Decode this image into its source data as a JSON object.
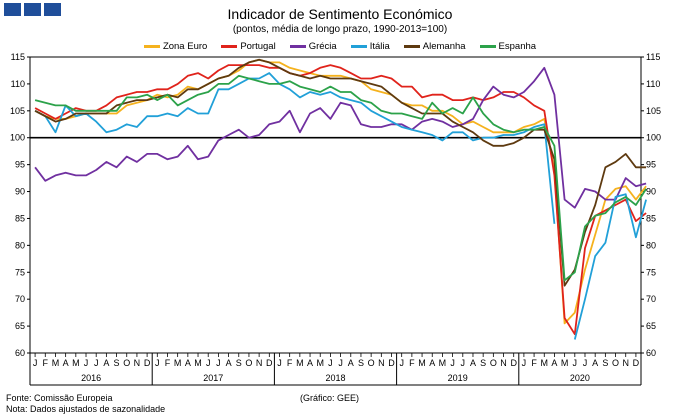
{
  "header": {
    "title": "Indicador de Sentimento Económico",
    "subtitle": "(pontos, média de longo prazo, 1990-2013=100)"
  },
  "footer": {
    "source": "Fonte: Comissão Europeia",
    "note": "Nota: Dados ajustados de sazonalidade",
    "credit": "(Gráfico: GEE)"
  },
  "chart_data": {
    "type": "line",
    "months": [
      "J",
      "F",
      "M",
      "A",
      "M",
      "J",
      "J",
      "A",
      "S",
      "O",
      "N",
      "D"
    ],
    "years": [
      "2016",
      "2017",
      "2018",
      "2019",
      "2020"
    ],
    "ylim": [
      60,
      115
    ],
    "yticks": [
      "60",
      "65",
      "70",
      "75",
      "80",
      "85",
      "90",
      "95",
      "100",
      "105",
      "110",
      "115"
    ],
    "reference_line": 100,
    "legend_position": "top",
    "series": [
      {
        "name": "Zona Euro",
        "color": "#f5b21e",
        "values": [
          105.0,
          104.0,
          103.5,
          103.5,
          104.0,
          104.5,
          104.5,
          104.5,
          104.5,
          106.0,
          106.5,
          107.0,
          108.0,
          107.5,
          108.0,
          109.5,
          109.0,
          110.0,
          111.0,
          111.5,
          112.5,
          114.0,
          114.5,
          114.0,
          114.0,
          113.0,
          112.5,
          112.0,
          111.5,
          111.5,
          111.5,
          111.0,
          110.5,
          109.0,
          108.5,
          108.0,
          106.5,
          106.0,
          106.0,
          105.0,
          105.0,
          104.0,
          102.5,
          103.0,
          102.0,
          101.0,
          101.0,
          101.0,
          102.0,
          102.5,
          103.5,
          94.0,
          65.5,
          67.5,
          75.5,
          82.0,
          88.5,
          90.5,
          91.0,
          88.5,
          91.0
        ]
      },
      {
        "name": "Portugal",
        "color": "#e0231b",
        "values": [
          105.5,
          104.5,
          103.5,
          104.5,
          105.5,
          105.0,
          105.0,
          106.0,
          107.5,
          108.0,
          108.5,
          108.5,
          109.0,
          109.0,
          110.0,
          111.5,
          112.0,
          111.0,
          112.5,
          113.5,
          113.5,
          113.5,
          113.5,
          113.0,
          113.0,
          112.0,
          111.5,
          112.0,
          113.0,
          113.5,
          113.0,
          112.0,
          111.0,
          111.0,
          111.5,
          111.0,
          109.5,
          109.5,
          107.5,
          108.0,
          108.0,
          107.0,
          107.0,
          107.5,
          107.0,
          107.5,
          108.5,
          108.5,
          107.5,
          106.0,
          105.0,
          93.0,
          66.5,
          63.5,
          79.5,
          85.5,
          86.5,
          87.5,
          88.5,
          84.5,
          86.0
        ]
      },
      {
        "name": "Grécia",
        "color": "#7030a0",
        "values": [
          94.5,
          92.0,
          93.0,
          93.5,
          93.0,
          93.0,
          94.0,
          95.5,
          94.5,
          96.5,
          95.5,
          97.0,
          97.0,
          96.0,
          96.5,
          98.5,
          96.0,
          96.5,
          99.5,
          100.5,
          101.5,
          100.0,
          100.5,
          102.5,
          103.0,
          105.0,
          101.0,
          104.5,
          105.5,
          103.5,
          106.5,
          106.0,
          102.5,
          102.0,
          102.0,
          102.5,
          102.5,
          101.5,
          103.0,
          103.5,
          103.0,
          102.0,
          102.5,
          103.5,
          107.0,
          109.5,
          108.0,
          107.5,
          108.5,
          110.5,
          113.0,
          108.0,
          88.5,
          87.0,
          90.5,
          90.0,
          88.5,
          88.5,
          92.5,
          91.0,
          91.5
        ]
      },
      {
        "name": "Itália",
        "color": "#21a0d8",
        "values": [
          105.0,
          104.0,
          101.0,
          106.0,
          104.0,
          104.5,
          103.0,
          101.0,
          101.5,
          102.5,
          102.0,
          104.0,
          104.0,
          104.5,
          104.0,
          105.5,
          104.5,
          104.5,
          109.0,
          109.0,
          110.0,
          111.0,
          111.0,
          112.0,
          110.0,
          109.0,
          107.5,
          108.5,
          108.0,
          108.5,
          107.5,
          107.0,
          106.5,
          105.0,
          104.0,
          103.0,
          102.0,
          101.5,
          101.0,
          100.5,
          99.5,
          101.0,
          101.0,
          99.5,
          100.0,
          100.0,
          100.5,
          100.5,
          101.0,
          102.0,
          102.5,
          84.0,
          null,
          62.5,
          70.0,
          78.0,
          80.5,
          89.0,
          89.5,
          81.5,
          88.5
        ]
      },
      {
        "name": "Alemanha",
        "color": "#5e3a10",
        "values": [
          105.0,
          104.0,
          103.0,
          103.5,
          104.5,
          104.5,
          104.5,
          104.5,
          106.0,
          106.5,
          107.0,
          107.0,
          107.5,
          108.0,
          107.5,
          109.0,
          109.0,
          110.0,
          111.0,
          111.5,
          113.0,
          114.0,
          114.5,
          114.0,
          113.0,
          112.0,
          111.5,
          111.0,
          111.5,
          111.0,
          111.0,
          111.0,
          110.5,
          110.0,
          109.5,
          108.0,
          106.5,
          105.5,
          104.5,
          104.5,
          104.5,
          103.0,
          102.0,
          101.0,
          99.5,
          98.5,
          98.5,
          99.0,
          100.0,
          101.5,
          101.5,
          96.0,
          72.5,
          75.5,
          82.5,
          87.5,
          94.5,
          95.5,
          97.0,
          94.5,
          94.5
        ]
      },
      {
        "name": "Espanha",
        "color": "#2ca24a",
        "values": [
          107.0,
          106.5,
          106.0,
          106.0,
          105.0,
          105.0,
          105.0,
          105.0,
          105.0,
          107.5,
          107.5,
          108.0,
          107.0,
          108.0,
          106.0,
          107.0,
          108.0,
          108.5,
          110.0,
          110.0,
          111.5,
          111.0,
          110.5,
          110.0,
          110.0,
          110.5,
          109.5,
          109.0,
          108.5,
          109.5,
          108.5,
          108.5,
          107.0,
          106.5,
          105.0,
          104.5,
          104.5,
          104.0,
          103.5,
          106.5,
          104.5,
          105.5,
          104.5,
          107.5,
          104.5,
          102.5,
          101.5,
          101.0,
          101.5,
          101.5,
          102.0,
          98.5,
          73.5,
          75.0,
          83.5,
          85.5,
          86.0,
          88.0,
          89.0,
          87.5,
          90.5
        ]
      }
    ]
  }
}
